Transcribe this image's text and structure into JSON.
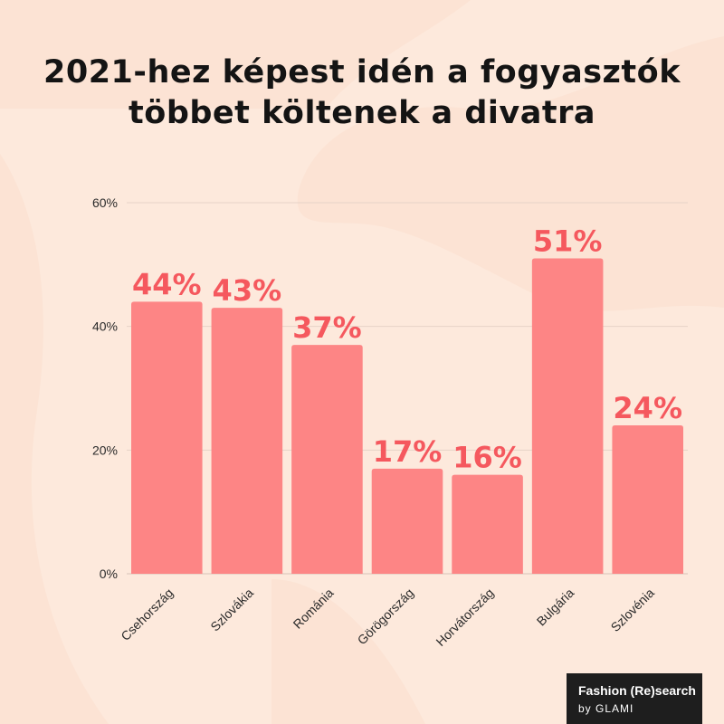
{
  "colors": {
    "background": "#fde9dc",
    "bar": "#fd8585",
    "value_label": "#f5585e",
    "gridline": "#e6d3c8",
    "title": "#141414",
    "brand_bg": "#1e1e1e"
  },
  "brand": {
    "line1": "Fashion (Re)search",
    "line2": "by GLAMI"
  },
  "chart_data": {
    "type": "bar",
    "title_lines": [
      "2021-hez képest idén a fogyasztók",
      "többet költenek a divatra"
    ],
    "categories": [
      "Csehország",
      "Szlovákia",
      "Románia",
      "Görögország",
      "Horvátország",
      "Bulgária",
      "Szlovénia"
    ],
    "values": [
      44,
      43,
      37,
      17,
      16,
      51,
      24
    ],
    "value_labels": [
      "44%",
      "43%",
      "37%",
      "17%",
      "16%",
      "51%",
      "24%"
    ],
    "yticks": [
      {
        "value": 0,
        "label": "0%"
      },
      {
        "value": 20,
        "label": "20%"
      },
      {
        "value": 40,
        "label": "40%"
      },
      {
        "value": 60,
        "label": "60%"
      }
    ],
    "ylim": [
      0,
      60
    ],
    "xlabel": "",
    "ylabel": "",
    "grid": true,
    "legend": "none"
  }
}
